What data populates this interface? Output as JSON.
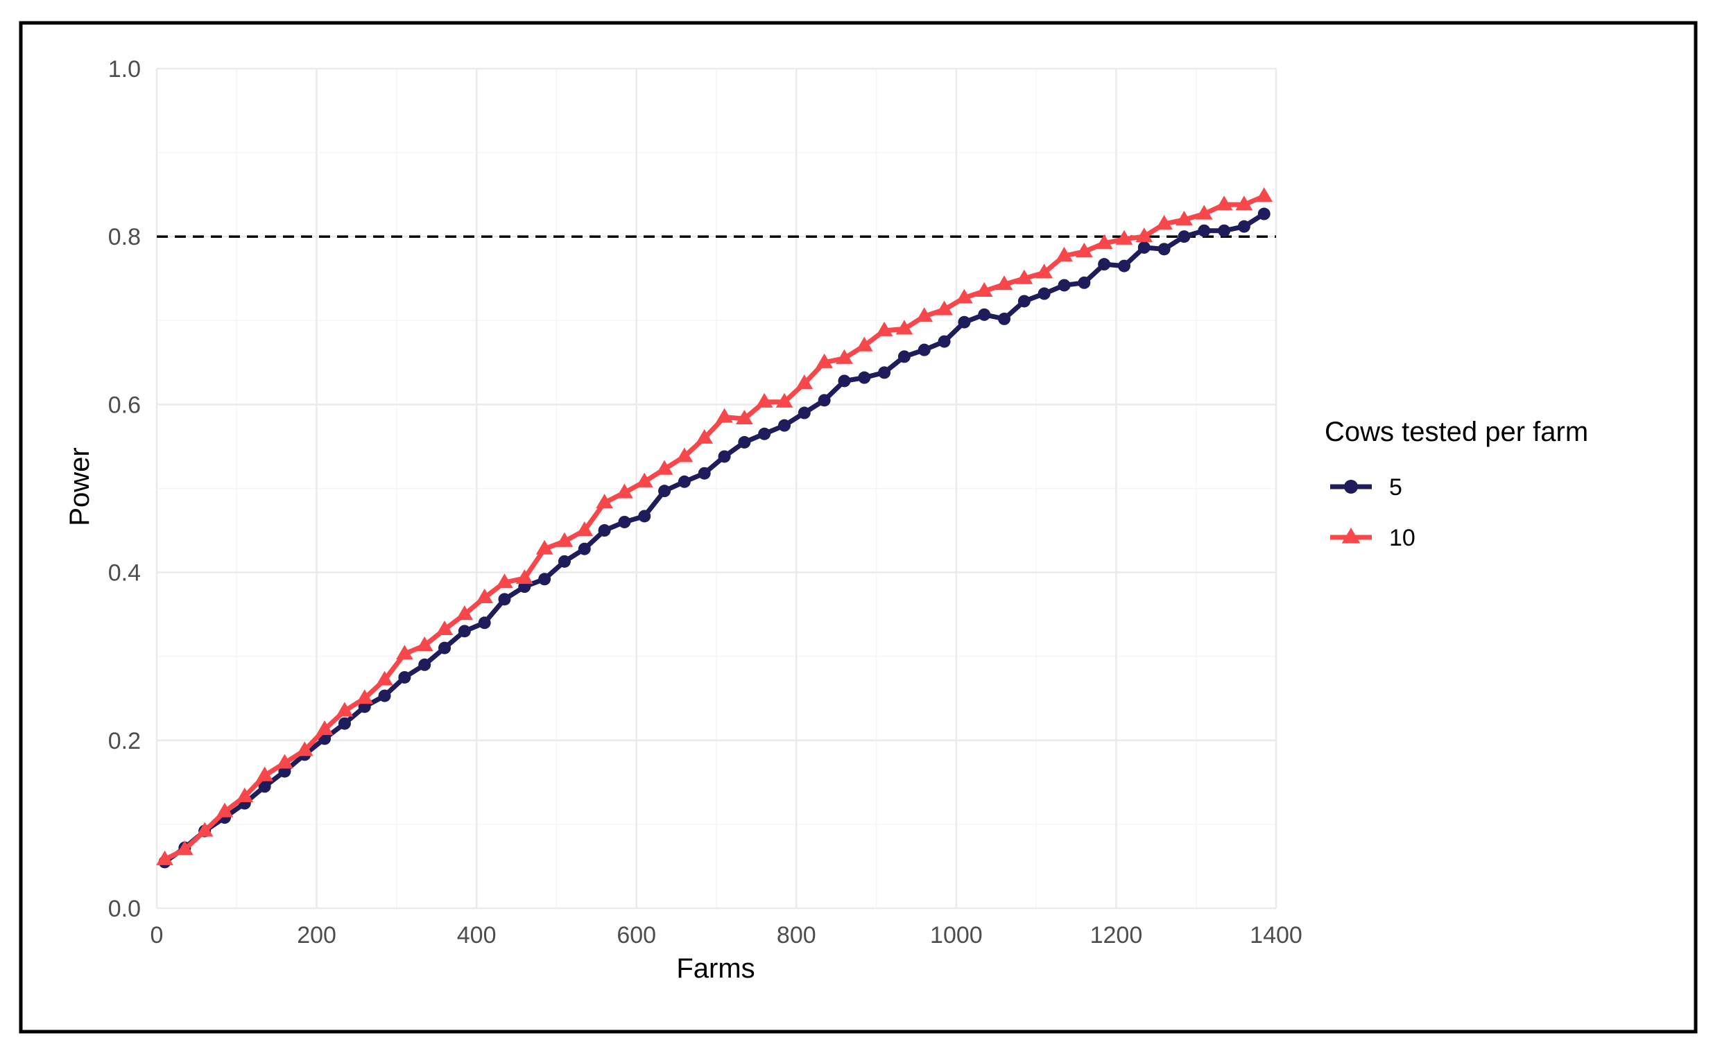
{
  "chart_data": {
    "type": "line",
    "xlabel": "Farms",
    "ylabel": "Power",
    "xlim": [
      0,
      1400
    ],
    "ylim": [
      0,
      1.0
    ],
    "x_ticks": [
      "0",
      "200",
      "400",
      "600",
      "800",
      "1000",
      "1200",
      "1400"
    ],
    "y_ticks": [
      "0.0",
      "0.2",
      "0.4",
      "0.6",
      "0.8",
      "1.0"
    ],
    "grid": true,
    "reference_line": {
      "y": 0.8,
      "style": "dashed",
      "color": "#000000"
    },
    "legend": {
      "title": "Cows tested per farm",
      "position": "right"
    },
    "x": [
      10,
      35,
      60,
      85,
      110,
      135,
      160,
      185,
      210,
      235,
      260,
      285,
      310,
      335,
      360,
      385,
      410,
      435,
      460,
      485,
      510,
      535,
      560,
      585,
      610,
      635,
      660,
      685,
      710,
      735,
      760,
      785,
      810,
      835,
      860,
      885,
      910,
      935,
      960,
      985,
      1010,
      1035,
      1060,
      1085,
      1110,
      1135,
      1160,
      1185,
      1210,
      1235,
      1260,
      1285,
      1310,
      1335,
      1360,
      1385
    ],
    "series": [
      {
        "name": "5",
        "color": "#1f1c5c",
        "marker": "circle",
        "values": [
          0.055,
          0.072,
          0.092,
          0.108,
          0.125,
          0.145,
          0.163,
          0.183,
          0.202,
          0.22,
          0.24,
          0.253,
          0.275,
          0.29,
          0.31,
          0.33,
          0.34,
          0.368,
          0.383,
          0.392,
          0.413,
          0.428,
          0.45,
          0.46,
          0.467,
          0.497,
          0.508,
          0.518,
          0.538,
          0.555,
          0.565,
          0.575,
          0.59,
          0.605,
          0.628,
          0.632,
          0.638,
          0.657,
          0.665,
          0.675,
          0.698,
          0.707,
          0.702,
          0.723,
          0.732,
          0.742,
          0.745,
          0.767,
          0.765,
          0.787,
          0.785,
          0.8,
          0.807,
          0.807,
          0.812,
          0.827
        ]
      },
      {
        "name": "10",
        "color": "#f8474a",
        "marker": "triangle",
        "values": [
          0.058,
          0.07,
          0.092,
          0.115,
          0.133,
          0.158,
          0.173,
          0.188,
          0.213,
          0.235,
          0.25,
          0.272,
          0.303,
          0.313,
          0.332,
          0.35,
          0.37,
          0.388,
          0.393,
          0.428,
          0.437,
          0.45,
          0.483,
          0.495,
          0.508,
          0.523,
          0.538,
          0.56,
          0.585,
          0.583,
          0.603,
          0.603,
          0.625,
          0.65,
          0.655,
          0.67,
          0.688,
          0.69,
          0.705,
          0.713,
          0.727,
          0.735,
          0.743,
          0.75,
          0.757,
          0.777,
          0.782,
          0.792,
          0.797,
          0.8,
          0.815,
          0.82,
          0.827,
          0.838,
          0.838,
          0.848
        ]
      }
    ]
  }
}
